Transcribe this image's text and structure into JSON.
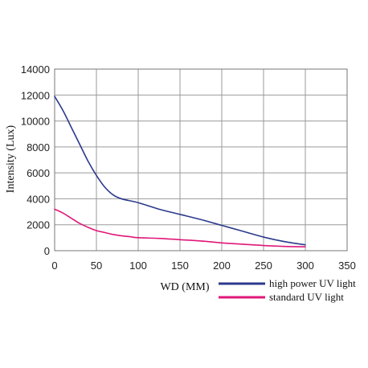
{
  "chart_data": {
    "type": "line",
    "xlabel": "WD (MM)",
    "ylabel": "Intensity (Lux)",
    "xlim": [
      0,
      350
    ],
    "ylim": [
      0,
      14000
    ],
    "x_ticks": [
      0,
      50,
      100,
      150,
      200,
      250,
      300,
      350
    ],
    "y_ticks": [
      0,
      2000,
      4000,
      6000,
      8000,
      10000,
      12000,
      14000
    ],
    "grid": true,
    "legend_position": "bottom-right",
    "series": [
      {
        "name": "high power UV light",
        "color": "#2b3a8c",
        "x": [
          0,
          10,
          20,
          30,
          40,
          50,
          60,
          70,
          80,
          100,
          125,
          150,
          175,
          200,
          225,
          250,
          275,
          300
        ],
        "y": [
          11900,
          10800,
          9500,
          8200,
          6900,
          5800,
          4900,
          4300,
          4000,
          3700,
          3200,
          2800,
          2400,
          1950,
          1500,
          1050,
          700,
          450
        ]
      },
      {
        "name": "standard UV light",
        "color": "#e0177a",
        "x": [
          0,
          10,
          20,
          30,
          40,
          50,
          60,
          70,
          80,
          90,
          100,
          125,
          150,
          175,
          200,
          225,
          250,
          275,
          300
        ],
        "y": [
          3200,
          2900,
          2500,
          2100,
          1800,
          1550,
          1400,
          1250,
          1150,
          1080,
          1000,
          950,
          850,
          750,
          600,
          500,
          400,
          330,
          300
        ]
      }
    ]
  }
}
